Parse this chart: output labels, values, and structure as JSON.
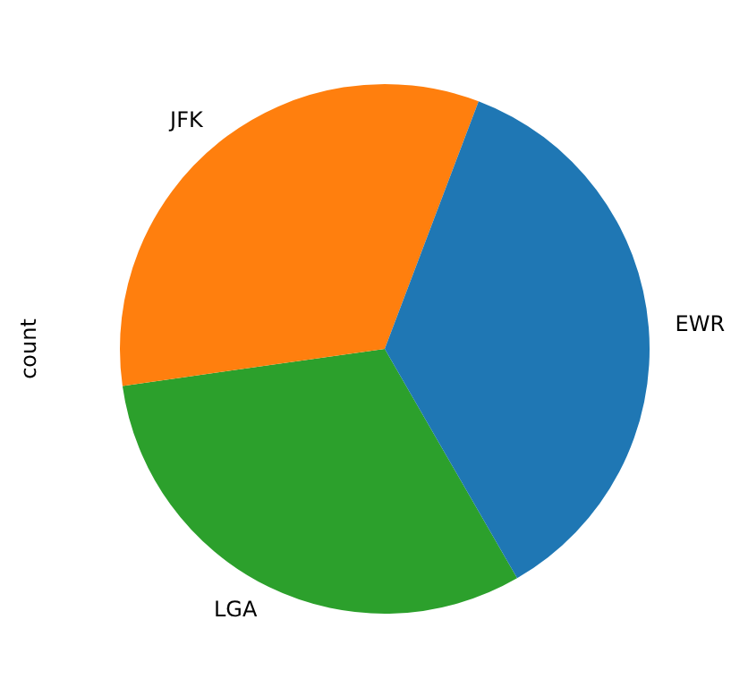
{
  "chart_data": {
    "type": "pie",
    "ylabel": "count",
    "categories": [
      "EWR",
      "JFK",
      "LGA"
    ],
    "values": [
      35.9,
      33.0,
      31.1
    ],
    "colors": [
      "#1f77b4",
      "#ff7f0e",
      "#2ca02c"
    ],
    "legend": false
  }
}
